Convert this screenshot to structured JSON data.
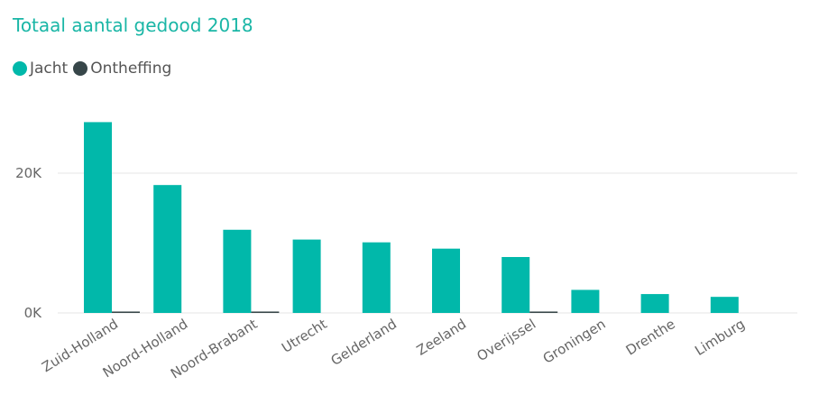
{
  "chart_data": {
    "type": "bar",
    "title": "Totaal aantal gedood 2018",
    "categories": [
      "Zuid-Holland",
      "Noord-Holland",
      "Noord-Brabant",
      "Utrecht",
      "Gelderland",
      "Zeeland",
      "Overijssel",
      "Groningen",
      "Drenthe",
      "Limburg"
    ],
    "series": [
      {
        "name": "Jacht",
        "color": "#01b8aa",
        "values": [
          27300,
          18300,
          11900,
          10500,
          10100,
          9200,
          8000,
          3300,
          2700,
          2300
        ]
      },
      {
        "name": "Ontheffing",
        "color": "#374649",
        "values": [
          200,
          0,
          200,
          0,
          0,
          0,
          200,
          0,
          0,
          0
        ]
      }
    ],
    "y_ticks": [
      {
        "value": 0,
        "label": "0K"
      },
      {
        "value": 20000,
        "label": "20K"
      }
    ],
    "ylim": [
      0,
      30000
    ],
    "grid": true,
    "legend_position": "top-left"
  }
}
